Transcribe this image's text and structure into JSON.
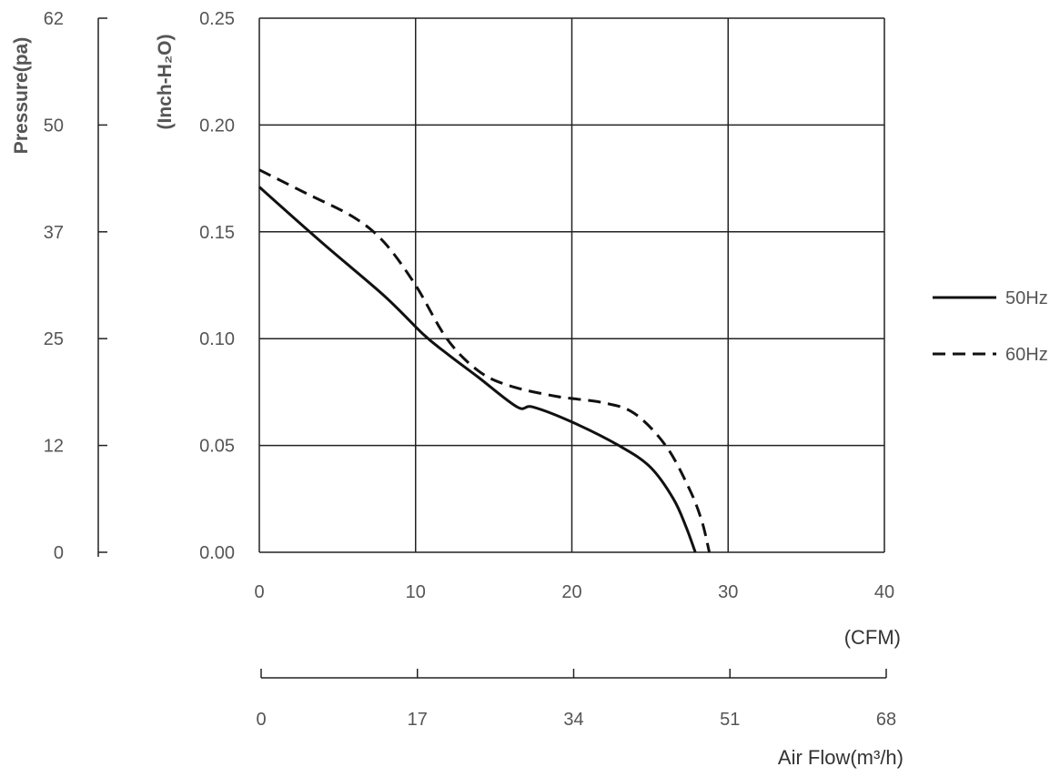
{
  "chart_data": {
    "type": "line",
    "xlabel": "(CFM)",
    "x_secondary_label": "Air Flow(m³/h)",
    "ylabel": "(Inch-H₂O)",
    "y_secondary_label": "Pressure(pa)",
    "xlim": [
      0,
      40
    ],
    "ylim": [
      0,
      0.25
    ],
    "grid": true,
    "legend_placement": "right",
    "x_ticks": [
      "0",
      "10",
      "20",
      "30",
      "40"
    ],
    "x_secondary_ticks": [
      "0",
      "17",
      "34",
      "51",
      "68"
    ],
    "y_ticks": [
      "0.00",
      "0.05",
      "0.10",
      "0.15",
      "0.20",
      "0.25"
    ],
    "y_secondary_ticks": [
      "0",
      "12",
      "25",
      "37",
      "50",
      "62"
    ],
    "series": [
      {
        "name": "50Hz",
        "style": "solid",
        "color": "#111111",
        "x": [
          0,
          4,
          8,
          10.5,
          12,
          14,
          16.5,
          17.5,
          20,
          23,
          25,
          26.5,
          27.3,
          27.9
        ],
        "y": [
          0.171,
          0.145,
          0.12,
          0.102,
          0.093,
          0.082,
          0.068,
          0.068,
          0.061,
          0.05,
          0.04,
          0.025,
          0.012,
          0.0
        ]
      },
      {
        "name": "60Hz",
        "style": "dashed",
        "color": "#111111",
        "x": [
          0,
          3,
          6,
          8,
          10,
          12,
          14,
          16,
          19,
          22,
          24,
          26,
          27.5,
          28.3,
          28.8
        ],
        "y": [
          0.179,
          0.168,
          0.157,
          0.145,
          0.125,
          0.1,
          0.085,
          0.078,
          0.073,
          0.07,
          0.065,
          0.05,
          0.03,
          0.015,
          0.0
        ]
      }
    ]
  }
}
